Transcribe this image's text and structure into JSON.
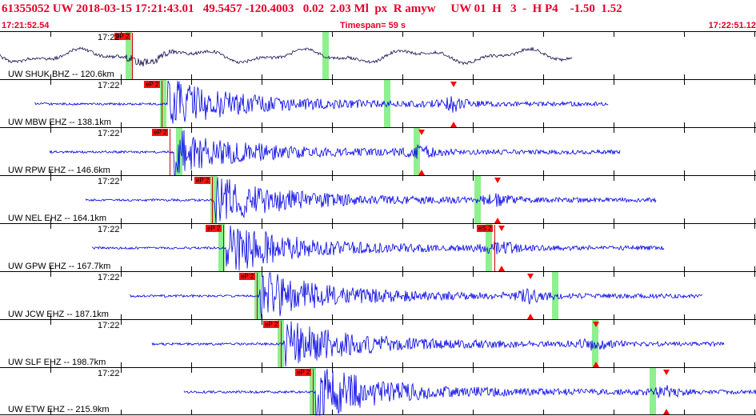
{
  "header": {
    "title": "61355052 UW 2018-03-15 17:21:43.01   49.5457 -120.4003   0.02  2.03 Ml  px  R amyw     UW 01  H   3  -  H P4    -1.50  1.52",
    "start_time": "17:21:52.54",
    "timespan": "Timespan=  59 s",
    "end_time": "17:22:51.12"
  },
  "colors": {
    "header_text": "#e8002a",
    "trace_first": "#1a1050",
    "trace": "#0000e6",
    "pick": "#ff1010",
    "window": "#8ef08e"
  },
  "channels": [
    {
      "id": "SHUK",
      "label": "UW SHUK BHZ -- 120.6km",
      "time_label": "17:22",
      "pick_label": "eP 2",
      "has_pick": true,
      "dist_km": 120.6,
      "has_s_marker": false
    },
    {
      "id": "MBW",
      "label": "UW MBW EHZ -- 138.1km",
      "time_label": "17:22",
      "pick_label": "eP 2",
      "has_pick": true,
      "dist_km": 138.1,
      "has_s_marker": true
    },
    {
      "id": "RPW",
      "label": "UW RPW EHZ -- 146.6km",
      "time_label": "17:22",
      "pick_label": "eP 2",
      "has_pick": true,
      "dist_km": 146.6,
      "has_s_marker": true
    },
    {
      "id": "NEL",
      "label": "UW NEL EHZ -- 164.1km",
      "time_label": "17:22",
      "pick_label": "eP 2",
      "has_pick": true,
      "dist_km": 164.1,
      "has_s_marker": true
    },
    {
      "id": "GPW",
      "label": "UW GPW EHZ -- 167.7km",
      "time_label": "17:22",
      "pick_label": "eP 2",
      "has_pick": true,
      "s_pick_label": "eS 2",
      "dist_km": 167.7,
      "has_s_marker": true
    },
    {
      "id": "JCW",
      "label": "UW JCW EHZ -- 187.1km",
      "time_label": "17:22",
      "pick_label": "eP 2",
      "has_pick": true,
      "dist_km": 187.1,
      "has_s_marker": true
    },
    {
      "id": "SLF",
      "label": "UW SLF EHZ -- 198.7km",
      "time_label": "17:22",
      "pick_label": "eP 2",
      "has_pick": true,
      "dist_km": 198.7,
      "has_s_marker": true
    },
    {
      "id": "ETW",
      "label": "UW ETW EHZ -- 215.9km",
      "time_label": "17:22",
      "pick_label": "eP 2",
      "has_pick": true,
      "dist_km": 215.9,
      "has_s_marker": true
    }
  ]
}
